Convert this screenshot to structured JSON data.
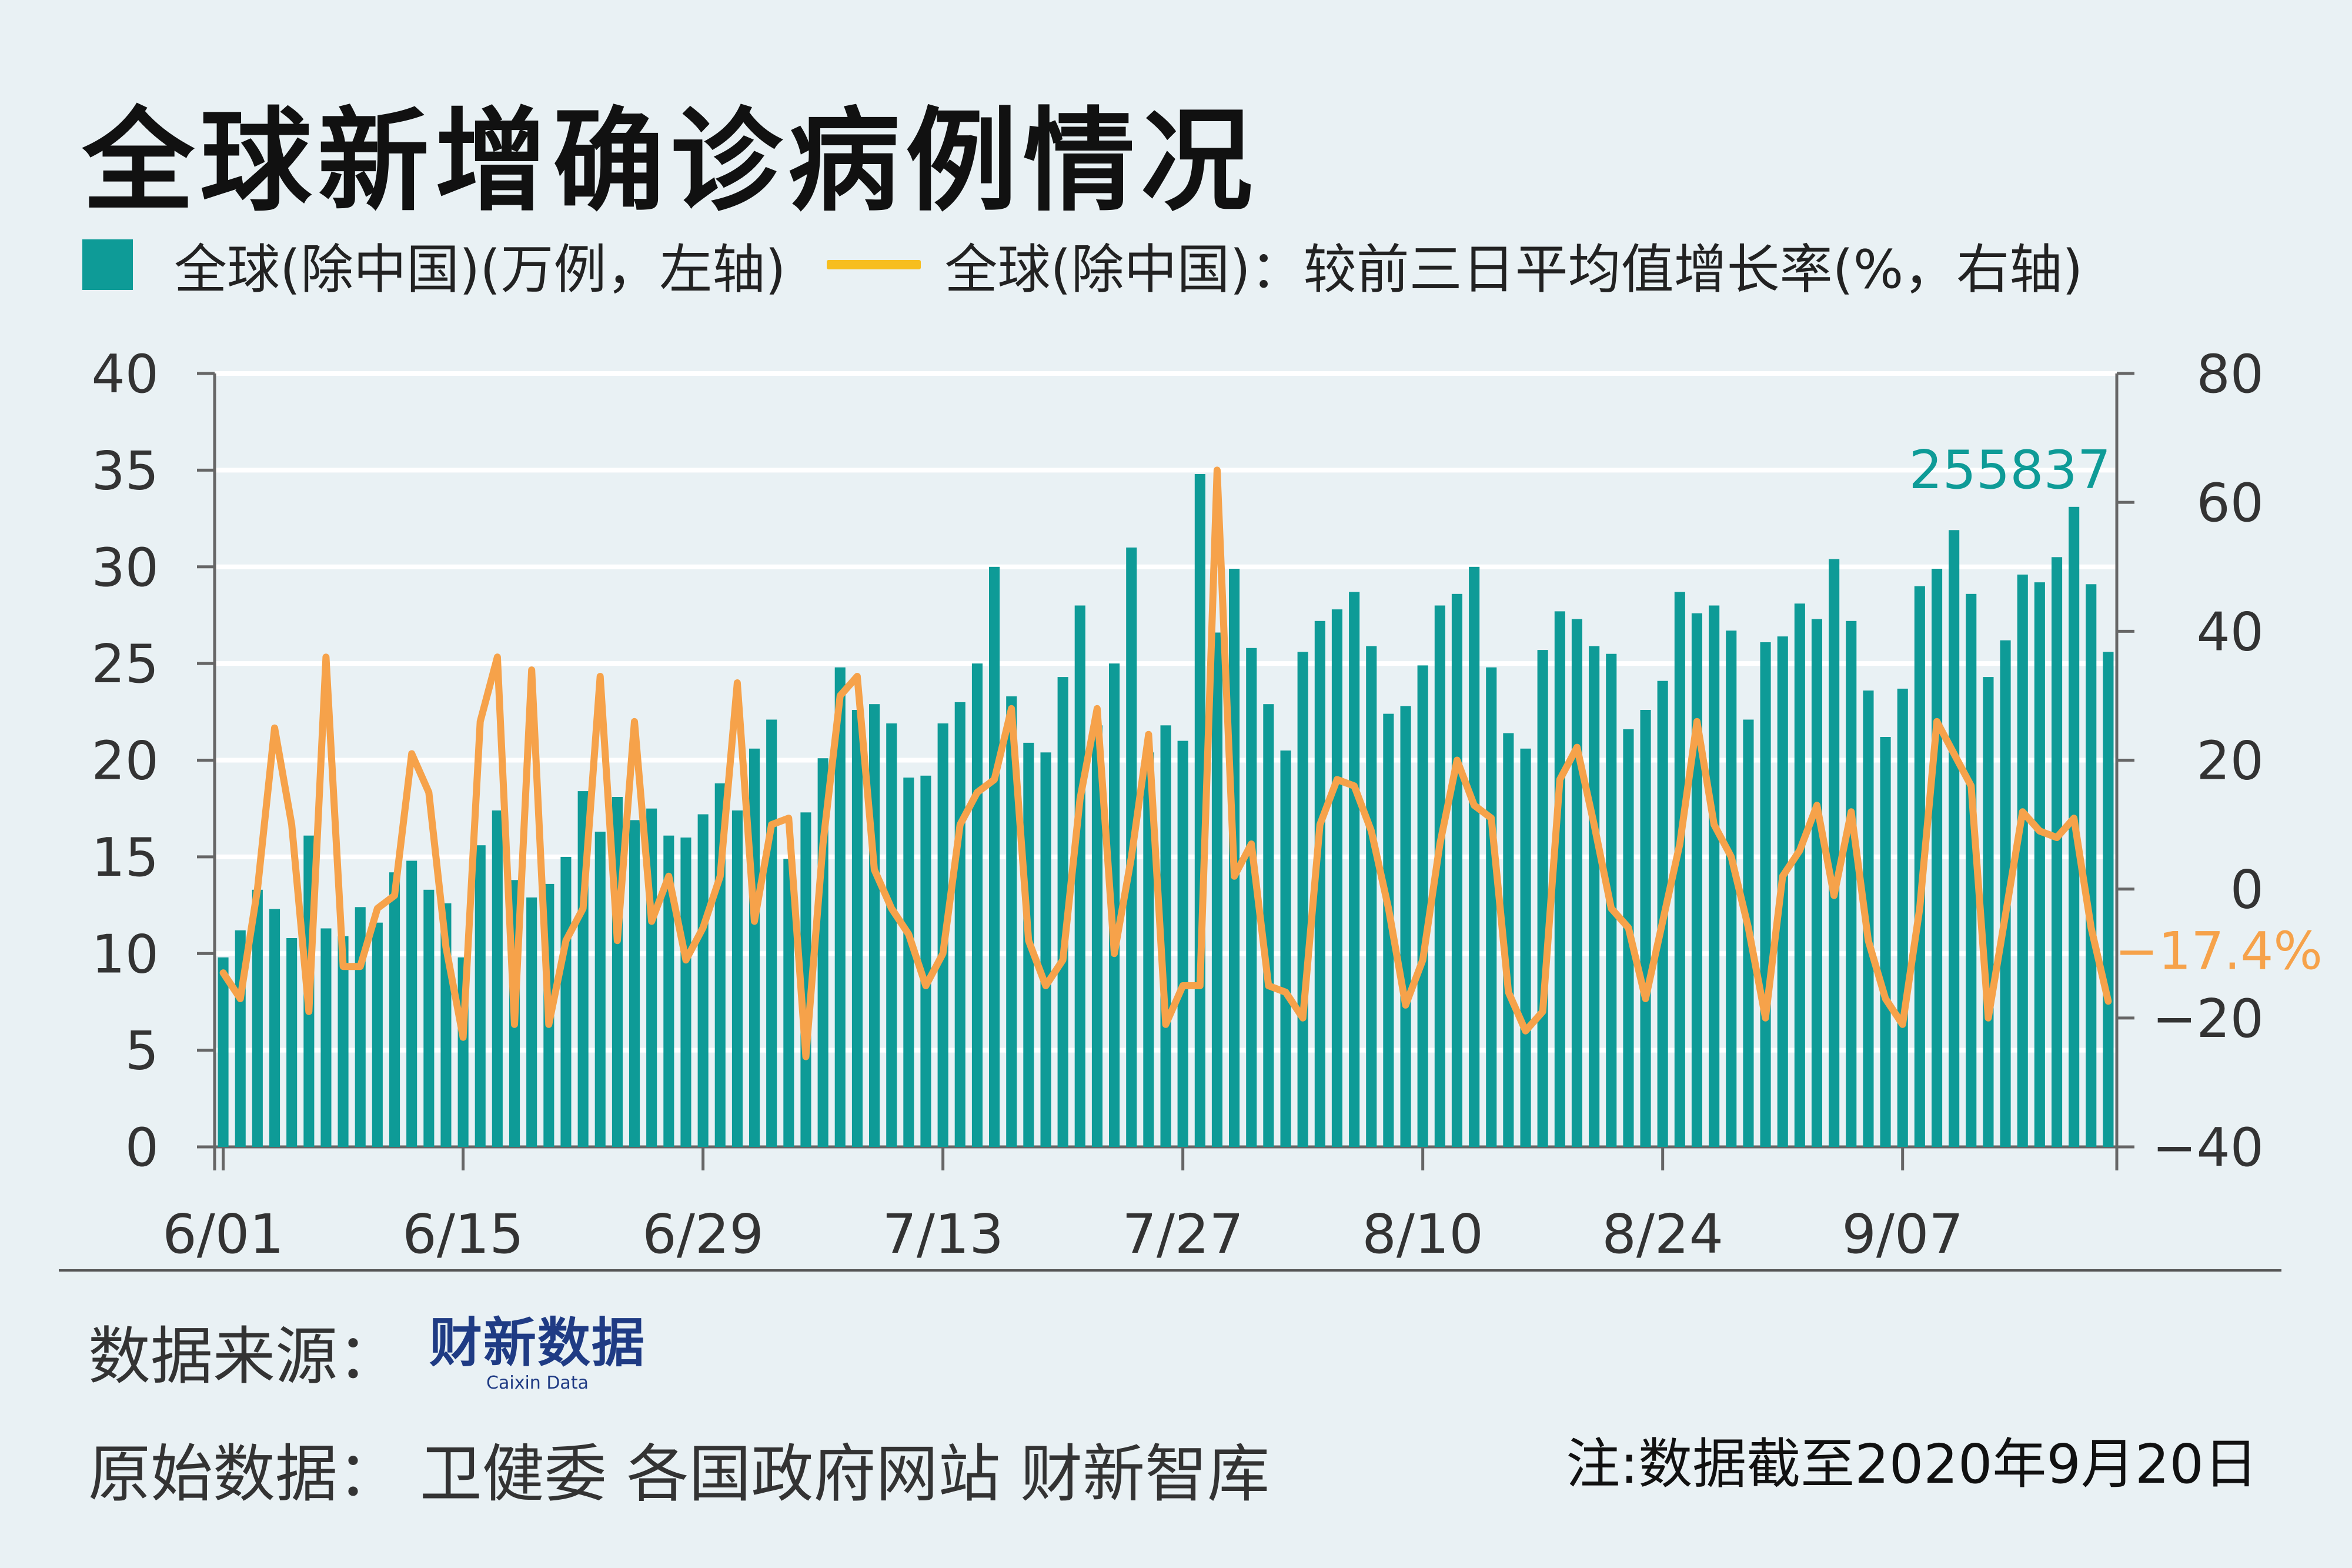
{
  "title": "全球新增确诊病例情况",
  "legend": {
    "bar_label": "全球(除中国)(万例，左轴)",
    "line_label": "全球(除中国)：较前三日平均值增长率(%，右轴)"
  },
  "colors": {
    "bar": "#0e9b97",
    "line": "#f6a24a",
    "legend_line": "#f7be1e",
    "annotation_bar": "#0e9b97",
    "annotation_line": "#f6a24a"
  },
  "footer": {
    "source_label": "数据来源：",
    "logo_text": "财新数据",
    "logo_sub": "Caixin Data",
    "raw_label": "原始数据： 卫健委 各国政府网站 财新智库",
    "note": "注:数据截至2020年9月20日"
  },
  "chart_data": {
    "type": "bar",
    "x_tick_labels": [
      "6/01",
      "6/15",
      "6/29",
      "7/13",
      "7/27",
      "8/10",
      "8/24",
      "9/07"
    ],
    "y_left": {
      "ticks": [
        0,
        5,
        10,
        15,
        20,
        25,
        30,
        35,
        40
      ],
      "range": [
        0,
        40
      ]
    },
    "y_right": {
      "ticks": [
        -40,
        -20,
        0,
        20,
        40,
        60,
        80
      ],
      "range": [
        -40,
        80
      ]
    },
    "grid": true,
    "annotations": {
      "last_bar": "255837",
      "last_line": "−17.4%"
    },
    "series": [
      {
        "axis": "left",
        "kind": "bar",
        "values": [
          9.8,
          11.2,
          13.3,
          12.3,
          10.8,
          16.1,
          11.3,
          10.9,
          12.4,
          11.6,
          14.2,
          14.8,
          13.3,
          12.6,
          9.8,
          15.6,
          17.4,
          13.8,
          12.9,
          13.6,
          15.0,
          18.4,
          16.3,
          18.1,
          16.9,
          17.5,
          16.1,
          16.0,
          17.2,
          18.8,
          17.4,
          20.6,
          22.1,
          14.9,
          17.3,
          20.1,
          24.8,
          22.6,
          22.9,
          21.9,
          19.1,
          19.2,
          21.9,
          23.0,
          25.0,
          30.0,
          23.3,
          20.9,
          20.4,
          24.3,
          28.0,
          21.8,
          25.0,
          31.0,
          20.4,
          21.8,
          21.0,
          34.8,
          26.6,
          29.9,
          25.8,
          22.9,
          20.5,
          25.6,
          27.2,
          27.8,
          28.7,
          25.9,
          22.4,
          22.8,
          24.9,
          28.0,
          28.6,
          30.0,
          24.8,
          21.4,
          20.6,
          25.7,
          27.7,
          27.3,
          25.9,
          25.5,
          21.6,
          22.6,
          24.1,
          28.7,
          27.6,
          28.0,
          26.7,
          22.1,
          26.1,
          26.4,
          28.1,
          27.3,
          30.4,
          27.2,
          23.6,
          21.2,
          23.7,
          29.0,
          29.9,
          31.9,
          28.6,
          24.3,
          26.2,
          29.6,
          29.2,
          30.5,
          33.1,
          29.1,
          25.6
        ]
      },
      {
        "axis": "right",
        "kind": "line",
        "values": [
          -13,
          -17,
          0,
          25,
          10,
          -19,
          36,
          -12,
          -12,
          -3,
          -1,
          21,
          15,
          -9,
          -23,
          26,
          36,
          -21,
          34,
          -21,
          -8,
          -3,
          33,
          -8,
          26,
          -5,
          2,
          -11,
          -6,
          2,
          32,
          -5,
          10,
          11,
          -26,
          7,
          30,
          33,
          3,
          -3,
          -7,
          -15,
          -10,
          10,
          15,
          17,
          28,
          -8,
          -15,
          -11,
          14,
          28,
          -10,
          5,
          24,
          -21,
          -15,
          -15,
          65,
          2,
          7,
          -15,
          -16,
          -20,
          10,
          17,
          16,
          9,
          -3,
          -18,
          -11,
          7,
          20,
          13,
          11,
          -16,
          -22,
          -19,
          17,
          22,
          10,
          -3,
          -6,
          -17,
          -5,
          7,
          26,
          10,
          5,
          -6,
          -20,
          2,
          6,
          13,
          -1,
          12,
          -8,
          -17,
          -21,
          -3,
          26,
          21,
          16,
          -20,
          -4,
          12,
          9,
          8,
          11,
          -6,
          -17.4
        ]
      }
    ]
  }
}
